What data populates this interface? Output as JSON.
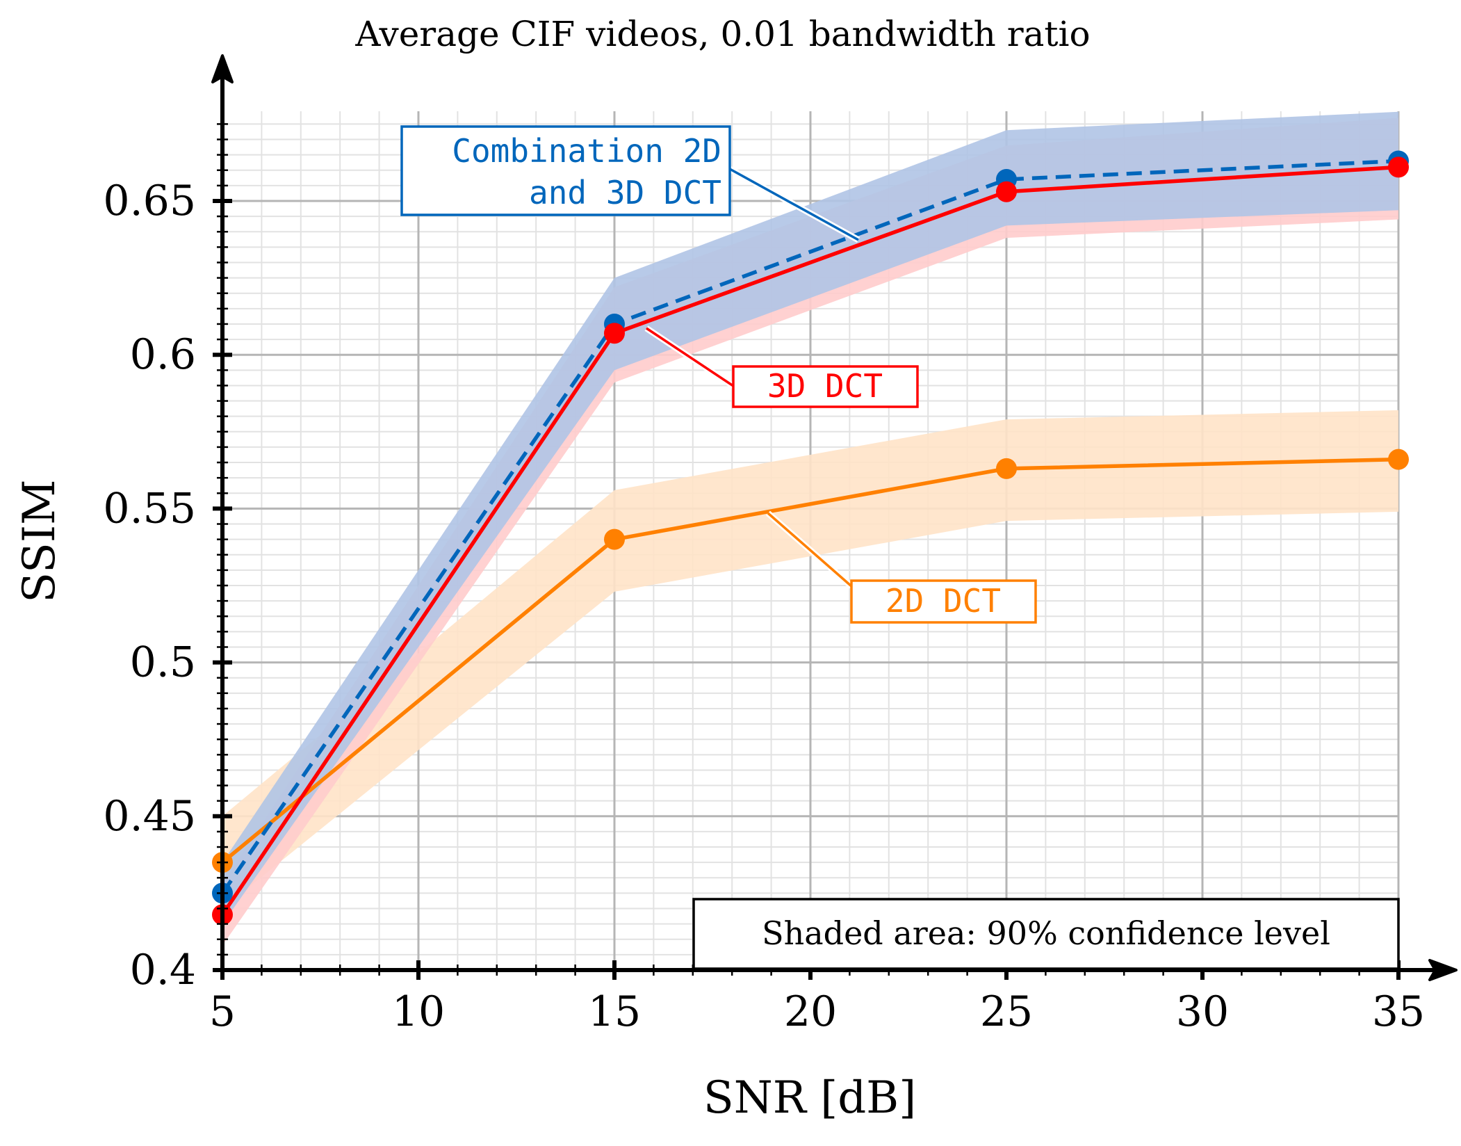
{
  "chart_data": {
    "type": "line",
    "title": "Average CIF videos, 0.01 bandwidth ratio",
    "xlabel": "SNR [dB]",
    "ylabel": "SSIM",
    "xlim": [
      5,
      36
    ],
    "ylim": [
      0.4,
      0.68
    ],
    "xticks": [
      5,
      10,
      15,
      20,
      25,
      30,
      35
    ],
    "xtick_labels": [
      "5",
      "10",
      "15",
      "20",
      "25",
      "30",
      "35"
    ],
    "yticks": [
      0.4,
      0.45,
      0.5,
      0.55,
      0.6,
      0.65
    ],
    "ytick_labels": [
      "0.4",
      "0.45",
      "0.5",
      "0.55",
      "0.6",
      "0.65"
    ],
    "grid": true,
    "x": [
      5,
      15,
      25,
      35
    ],
    "series": [
      {
        "name": "2D DCT",
        "label": "2D DCT",
        "color": "#ff8000",
        "band_color": "#ffe3c8",
        "dashed": false,
        "values": [
          0.435,
          0.54,
          0.563,
          0.566
        ],
        "lower": [
          0.42,
          0.523,
          0.546,
          0.549
        ],
        "upper": [
          0.45,
          0.556,
          0.579,
          0.582
        ]
      },
      {
        "name": "3D DCT",
        "label": "3D DCT",
        "color": "#ff0000",
        "band_color": "#ffcccc",
        "dashed": false,
        "values": [
          0.418,
          0.607,
          0.653,
          0.661
        ],
        "lower": [
          0.408,
          0.591,
          0.638,
          0.644
        ],
        "upper": [
          0.428,
          0.622,
          0.668,
          0.677
        ]
      },
      {
        "name": "Combination 2D and 3D DCT",
        "label_lines": [
          "Combination 2D",
          "and 3D DCT"
        ],
        "color": "#0066bb",
        "band_color": "#b0c4e6",
        "dashed": true,
        "values": [
          0.425,
          0.61,
          0.657,
          0.663
        ],
        "lower": [
          0.415,
          0.595,
          0.642,
          0.647
        ],
        "upper": [
          0.435,
          0.625,
          0.673,
          0.679
        ]
      }
    ],
    "note": "Shaded area: 90% confidence level"
  }
}
